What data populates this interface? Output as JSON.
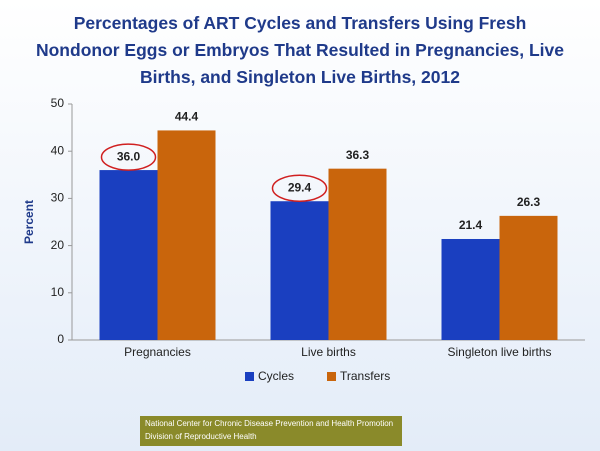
{
  "chart_data": {
    "type": "bar",
    "title": "Percentages of ART Cycles and Transfers Using Fresh Nondonor Eggs or Embryos That Resulted in Pregnancies, Live Births, and Singleton Live  Births, 2012",
    "ylabel": "Percent",
    "categories": [
      "Pregnancies",
      "Live births",
      "Singleton live births"
    ],
    "series": [
      {
        "name": "Cycles",
        "color": "#1a3fc0",
        "values": [
          36.0,
          29.4,
          21.4
        ],
        "value_labels": [
          "36.0",
          "29.4",
          "21.4"
        ]
      },
      {
        "name": "Transfers",
        "color": "#c9650c",
        "values": [
          44.4,
          36.3,
          26.3
        ]
      }
    ],
    "ylim": [
      0,
      50
    ],
    "yticks": [
      0,
      10,
      20,
      30,
      40,
      50
    ],
    "grid": false,
    "footer": [
      "National Center for Chronic Disease Prevention and Health Promotion",
      "Division of Reproductive Health"
    ]
  }
}
